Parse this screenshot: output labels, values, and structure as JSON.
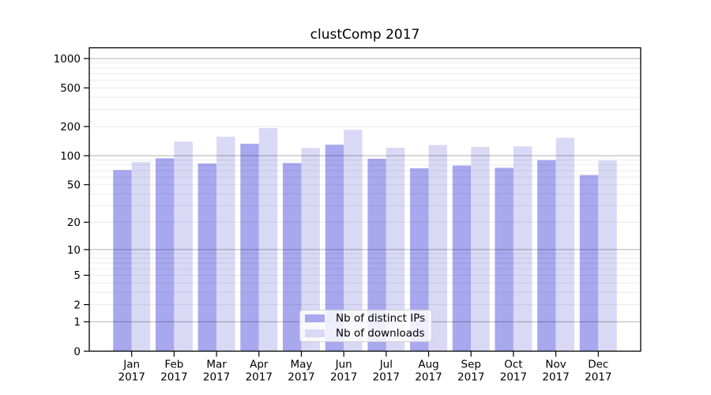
{
  "title": "clustComp 2017",
  "colors": {
    "distinct_ips_bar": "#a8a8ef",
    "downloads_bar": "#d9d9f6",
    "grid_major": "rgba(0,0,0,0.28)",
    "grid_minor": "rgba(0,0,0,0.08)",
    "axis": "#000000",
    "legend_background": "rgba(255,255,255,0.8)",
    "legend_border": "#d0d0d0",
    "tick_label": "#000000"
  },
  "legend": {
    "items": [
      {
        "label": "Nb of distinct IPs"
      },
      {
        "label": "Nb of downloads"
      }
    ]
  },
  "chart_data": {
    "type": "bar",
    "title": "clustComp 2017",
    "months": [
      "Jan",
      "Feb",
      "Mar",
      "Apr",
      "May",
      "Jun",
      "Jul",
      "Aug",
      "Sep",
      "Oct",
      "Nov",
      "Dec"
    ],
    "year": "2017",
    "series": [
      {
        "name": "Nb of distinct IPs",
        "color": "#a8a8ef",
        "values": [
          71,
          94,
          83,
          133,
          84,
          130,
          93,
          74,
          79,
          75,
          90,
          63
        ]
      },
      {
        "name": "Nb of downloads",
        "color": "#d9d9f6",
        "values": [
          86,
          140,
          157,
          193,
          120,
          185,
          121,
          129,
          123,
          125,
          153,
          89
        ]
      }
    ],
    "yscale": "log1p",
    "yticks": [
      0,
      1,
      2,
      5,
      10,
      20,
      50,
      100,
      200,
      500,
      1000
    ],
    "minor_gridlines": [
      2,
      3,
      4,
      6,
      7,
      8,
      9,
      20,
      30,
      40,
      60,
      70,
      80,
      90,
      200,
      300,
      400,
      500,
      600,
      700,
      800,
      900,
      5,
      50
    ],
    "major_gridlines": [
      1,
      10,
      100,
      1000
    ],
    "ylim": [
      0,
      1290
    ],
    "grid": true,
    "legend_position": "lower center"
  }
}
